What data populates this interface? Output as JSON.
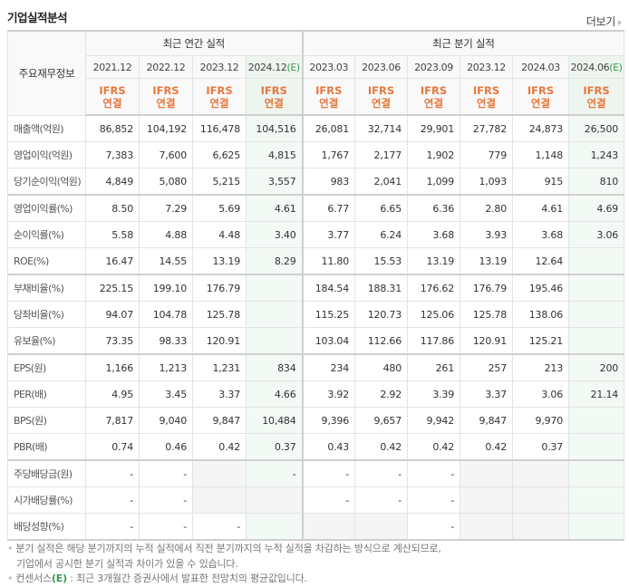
{
  "header": {
    "title": "기업실적분석",
    "more_label": "더보기"
  },
  "table": {
    "label_header": "주요재무정보",
    "annual_group": "최근 연간 실적",
    "quarter_group": "최근 분기 실적",
    "annual_periods": [
      {
        "period": "2021.12",
        "est": ""
      },
      {
        "period": "2022.12",
        "est": ""
      },
      {
        "period": "2023.12",
        "est": ""
      },
      {
        "period": "2024.12",
        "est": "(E)"
      }
    ],
    "quarter_periods": [
      {
        "period": "2023.03",
        "est": ""
      },
      {
        "period": "2023.06",
        "est": ""
      },
      {
        "period": "2023.09",
        "est": ""
      },
      {
        "period": "2023.12",
        "est": ""
      },
      {
        "period": "2024.03",
        "est": ""
      },
      {
        "period": "2024.06",
        "est": "(E)"
      }
    ],
    "basis_line1": "IFRS",
    "basis_line2": "연결",
    "rows": [
      {
        "label": "매출액(억원)",
        "values": [
          "86,852",
          "104,192",
          "116,478",
          "104,516",
          "26,081",
          "32,714",
          "29,901",
          "27,782",
          "24,873",
          "26,500"
        ]
      },
      {
        "label": "영업이익(억원)",
        "values": [
          "7,383",
          "7,600",
          "6,625",
          "4,815",
          "1,767",
          "2,177",
          "1,902",
          "779",
          "1,148",
          "1,243"
        ]
      },
      {
        "label": "당기순이익(억원)",
        "values": [
          "4,849",
          "5,080",
          "5,215",
          "3,557",
          "983",
          "2,041",
          "1,099",
          "1,093",
          "915",
          "810"
        ]
      },
      {
        "label": "영업이익률(%)",
        "values": [
          "8.50",
          "7.29",
          "5.69",
          "4.61",
          "6.77",
          "6.65",
          "6.36",
          "2.80",
          "4.61",
          "4.69"
        ]
      },
      {
        "label": "순이익률(%)",
        "values": [
          "5.58",
          "4.88",
          "4.48",
          "3.40",
          "3.77",
          "6.24",
          "3.68",
          "3.93",
          "3.68",
          "3.06"
        ]
      },
      {
        "label": "ROE(%)",
        "values": [
          "16.47",
          "14.55",
          "13.19",
          "8.29",
          "11.80",
          "15.53",
          "13.19",
          "13.19",
          "12.64",
          ""
        ]
      },
      {
        "label": "부채비율(%)",
        "values": [
          "225.15",
          "199.10",
          "176.79",
          "",
          "184.54",
          "188.31",
          "176.62",
          "176.79",
          "195.46",
          ""
        ]
      },
      {
        "label": "당좌비율(%)",
        "values": [
          "94.07",
          "104.78",
          "125.78",
          "",
          "115.25",
          "120.73",
          "125.06",
          "125.78",
          "138.06",
          ""
        ]
      },
      {
        "label": "유보율(%)",
        "values": [
          "73.35",
          "98.33",
          "120.91",
          "",
          "103.04",
          "112.66",
          "117.86",
          "120.91",
          "125.21",
          ""
        ]
      },
      {
        "label": "EPS(원)",
        "values": [
          "1,166",
          "1,213",
          "1,231",
          "834",
          "234",
          "480",
          "261",
          "257",
          "213",
          "200"
        ]
      },
      {
        "label": "PER(배)",
        "values": [
          "4.95",
          "3.45",
          "3.37",
          "4.66",
          "3.92",
          "2.92",
          "3.39",
          "3.37",
          "3.06",
          "21.14"
        ]
      },
      {
        "label": "BPS(원)",
        "values": [
          "7,817",
          "9,040",
          "9,847",
          "10,484",
          "9,396",
          "9,657",
          "9,942",
          "9,847",
          "9,970",
          ""
        ]
      },
      {
        "label": "PBR(배)",
        "values": [
          "0.74",
          "0.46",
          "0.42",
          "0.37",
          "0.43",
          "0.42",
          "0.42",
          "0.42",
          "0.37",
          ""
        ]
      },
      {
        "label": "주당배당금(원)",
        "values": [
          "-",
          "-",
          "",
          "-",
          "-",
          "-",
          "-",
          "",
          "",
          ""
        ]
      },
      {
        "label": "시가배당률(%)",
        "values": [
          "-",
          "-",
          "",
          "",
          "-",
          "-",
          "-",
          "",
          "",
          ""
        ]
      },
      {
        "label": "배당성향(%)",
        "values": [
          "-",
          "-",
          "-",
          "",
          "",
          "",
          "-",
          "",
          "",
          ""
        ]
      }
    ]
  },
  "notes": {
    "line1": "분기 실적은 해당 분기까지의 누적 실적에서 직전 분기까지의 누적 실적을 차감하는 방식으로 계산되므로,",
    "line2": "기업에서 공시한 분기 실적과 차이가 있을 수 있습니다.",
    "line3_prefix": "컨센서스",
    "line3_est": "(E)",
    "line3_suffix": " : 최근 3개월간 증권사에서 발표한 전망치의 평균값입니다."
  },
  "colors": {
    "ifrs_orange": "#e8773d",
    "estimate_green": "#3a9a55",
    "estimate_col_bg": "#f3f9f4",
    "na_bg": "#f5f5f5"
  }
}
